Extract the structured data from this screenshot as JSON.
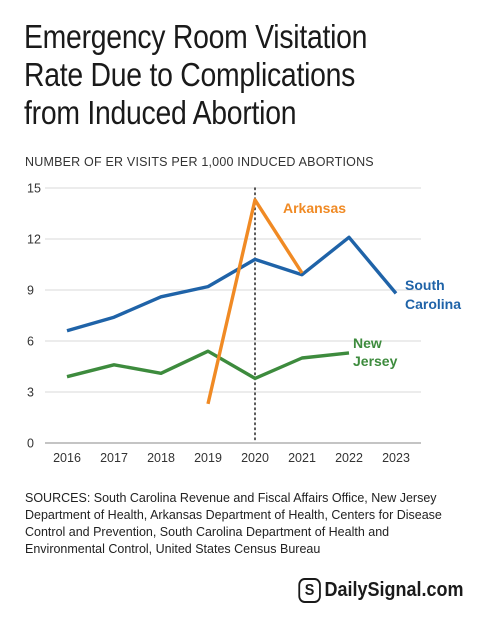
{
  "title_lines": [
    "Emergency Room Visitation",
    "Rate Due to Complications",
    "from Induced Abortion"
  ],
  "subtitle": "NUMBER OF ER VISITS PER 1,000 INDUCED ABORTIONS",
  "sources": "SOURCES: South Carolina Revenue and Fiscal Affairs Office, New Jersey Department of Health, Arkansas Department of Health, Centers for Disease Control and Prevention, South Carolina Department of Health and Environmental Control, United States Census Bureau",
  "brand": {
    "logo_text": "S",
    "name": "DailySignal.com"
  },
  "chart_data": {
    "type": "line",
    "x": [
      2016,
      2017,
      2018,
      2019,
      2020,
      2021,
      2022,
      2023
    ],
    "xticks": [
      "2016",
      "2017",
      "2018",
      "2019",
      "2020",
      "2021",
      "2022",
      "2023"
    ],
    "yticks": [
      "0",
      "3",
      "6",
      "9",
      "12",
      "15"
    ],
    "ylim": [
      0,
      15
    ],
    "grid": "horizontal",
    "reference_line_x": 2020,
    "series": [
      {
        "name_lines": [
          "South",
          "Carolina"
        ],
        "color": "#1f63a8",
        "label_color": "#1f63a8",
        "x": [
          2016,
          2017,
          2018,
          2019,
          2020,
          2021,
          2022,
          2023
        ],
        "values": [
          6.6,
          7.4,
          8.6,
          9.2,
          10.8,
          9.9,
          12.1,
          8.8
        ]
      },
      {
        "name_lines": [
          "Arkansas"
        ],
        "color": "#f08a24",
        "label_color": "#f08a24",
        "x": [
          2019,
          2020,
          2021
        ],
        "values": [
          2.3,
          14.3,
          10.0
        ]
      },
      {
        "name_lines": [
          "New",
          "Jersey"
        ],
        "color": "#3d8b3d",
        "label_color": "#3d8b3d",
        "x": [
          2016,
          2017,
          2018,
          2019,
          2020,
          2021,
          2022
        ],
        "values": [
          3.9,
          4.6,
          4.1,
          5.4,
          3.8,
          5.0,
          5.3
        ]
      }
    ]
  }
}
